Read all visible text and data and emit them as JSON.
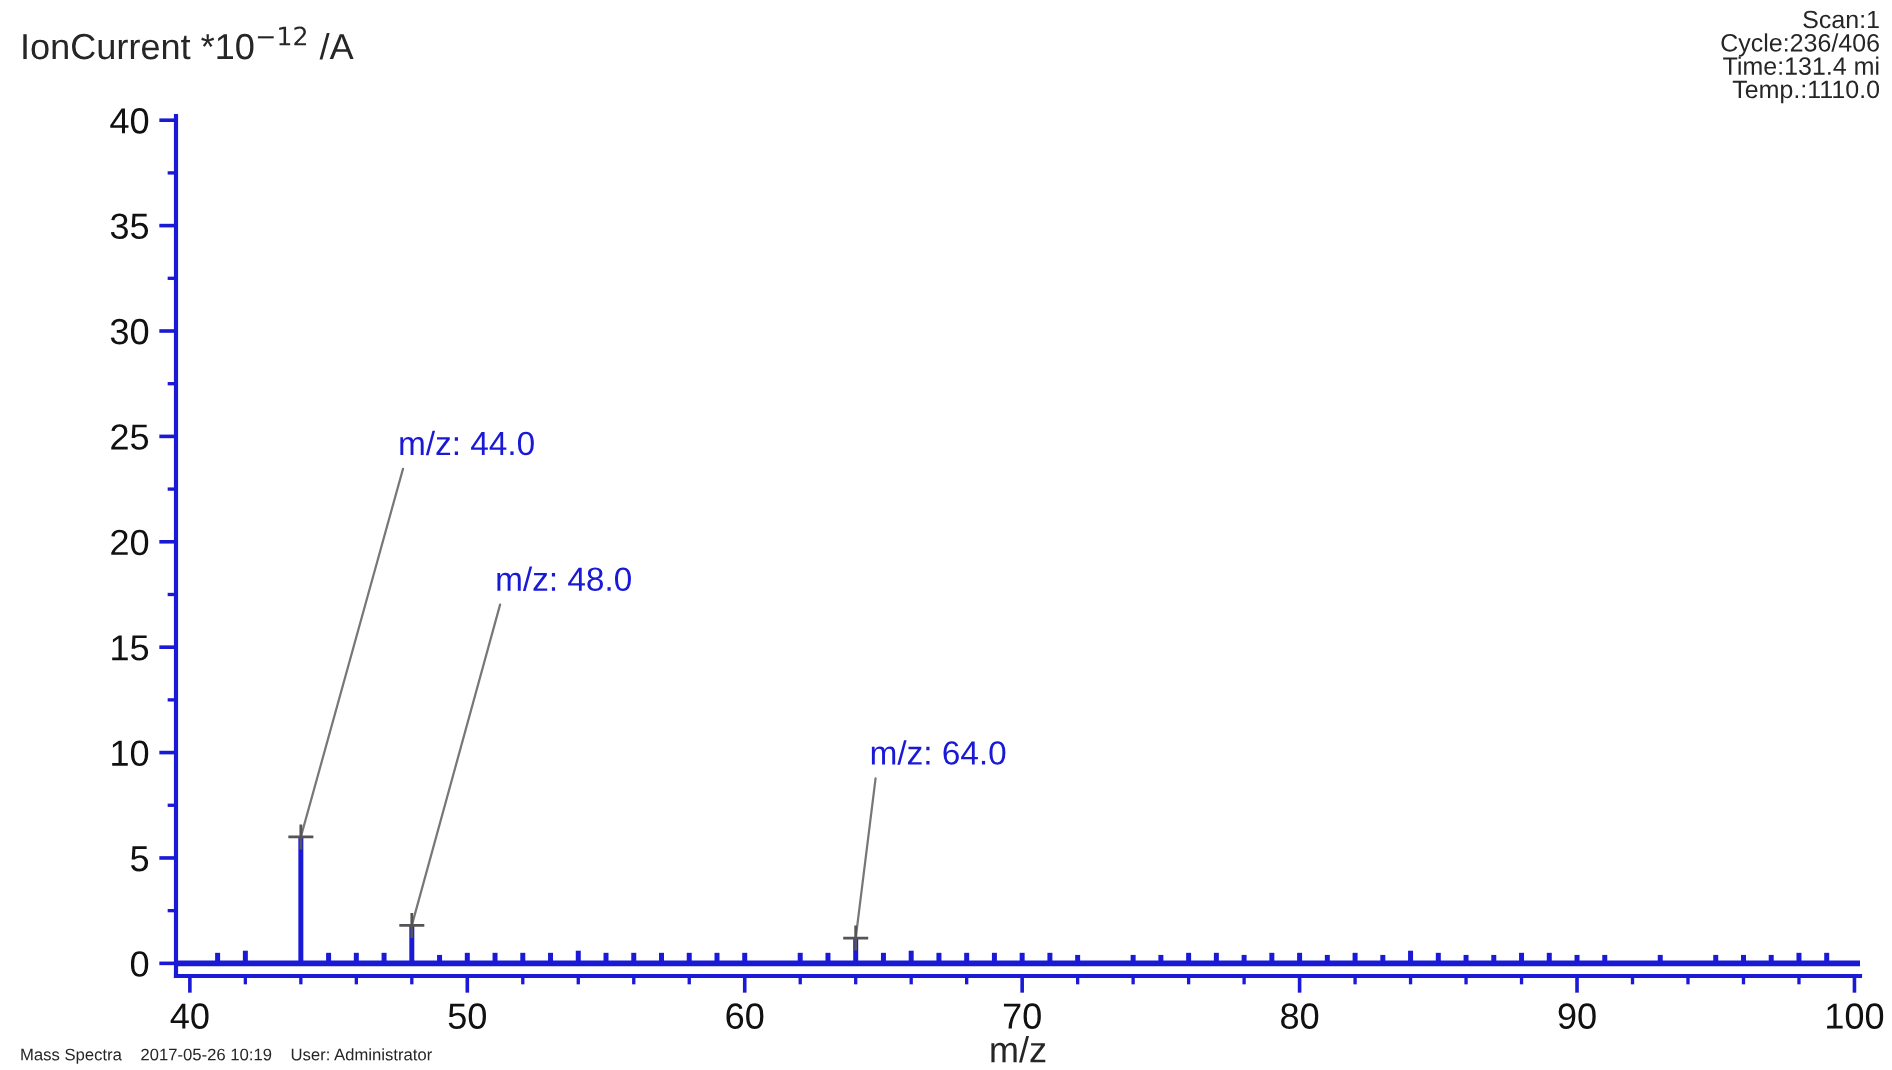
{
  "chart_data": {
    "type": "bar",
    "ylabel": "IonCurrent *10$^{−12}$ /A",
    "xlabel": "m/z",
    "x": [
      41,
      42,
      44,
      45,
      46,
      47,
      48,
      49,
      50,
      51,
      52,
      53,
      54,
      55,
      56,
      57,
      58,
      59,
      60,
      62,
      63,
      64,
      65,
      66,
      67,
      68,
      69,
      70,
      71,
      72,
      74,
      75,
      76,
      77,
      78,
      79,
      80,
      81,
      82,
      83,
      84,
      85,
      86,
      87,
      88,
      89,
      90,
      91,
      93,
      95,
      96,
      97,
      98,
      99
    ],
    "values": [
      0.5,
      0.6,
      6.0,
      0.5,
      0.5,
      0.5,
      1.8,
      0.4,
      0.5,
      0.5,
      0.5,
      0.5,
      0.6,
      0.5,
      0.5,
      0.5,
      0.5,
      0.5,
      0.5,
      0.5,
      0.5,
      1.2,
      0.5,
      0.6,
      0.5,
      0.5,
      0.5,
      0.5,
      0.5,
      0.4,
      0.4,
      0.4,
      0.5,
      0.5,
      0.4,
      0.5,
      0.5,
      0.4,
      0.5,
      0.4,
      0.6,
      0.5,
      0.4,
      0.4,
      0.5,
      0.5,
      0.4,
      0.4,
      0.4,
      0.4,
      0.4,
      0.4,
      0.5,
      0.5
    ],
    "color": "#1a1ad6",
    "xlim": [
      39.5,
      100.2
    ],
    "ylim": [
      -0.6,
      40.2
    ],
    "xticks": [
      40,
      50,
      60,
      70,
      80,
      90,
      100
    ],
    "yticks": [
      0,
      5,
      10,
      15,
      20,
      25,
      30,
      35,
      40
    ],
    "ref_lines": [
      {
        "axis": "y",
        "value": 0,
        "color": "#1a1ad6"
      }
    ],
    "grid": false,
    "legend": false,
    "annotations": [
      {
        "text": "m/z: 44.0",
        "x": 44,
        "y": 6.0
      },
      {
        "text": "m/z: 48.0",
        "x": 48,
        "y": 1.8
      },
      {
        "text": "m/z: 64.0",
        "x": 64,
        "y": 1.2
      },
      "Scan:1\nCycle:236/406\nTime:131.4 mi\nTemp.:1110.0",
      "Mass Spectra    2017-05-26 10:19    User: Administrator"
    ]
  }
}
